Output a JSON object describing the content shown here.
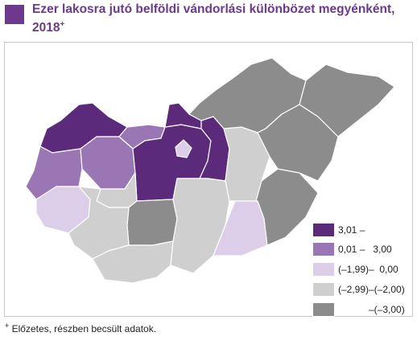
{
  "title": {
    "text": "Ezer lakosra jutó belföldi vándorlási különbözet megyénként, 2018",
    "superscript": "+"
  },
  "colors": {
    "c1": "#5b2a7a",
    "c2": "#9b76b4",
    "c3": "#dccde9",
    "c4": "#cfcfcf",
    "c5": "#8c8c8c",
    "border": "#ffffff",
    "accent": "#6b3a8c"
  },
  "legend": [
    {
      "label": "3,01 –",
      "color_key": "c1"
    },
    {
      "label": "0,01 –   3,00",
      "color_key": "c2"
    },
    {
      "label": "(–1,99)–  0,00",
      "color_key": "c3"
    },
    {
      "label": "(–2,99)–(–2,00)",
      "color_key": "c4"
    },
    {
      "label": "–(–3,00)",
      "color_key": "c5"
    }
  ],
  "footnote": {
    "marker": "+",
    "text": "Előzetes, részben becsült adatok."
  }
}
